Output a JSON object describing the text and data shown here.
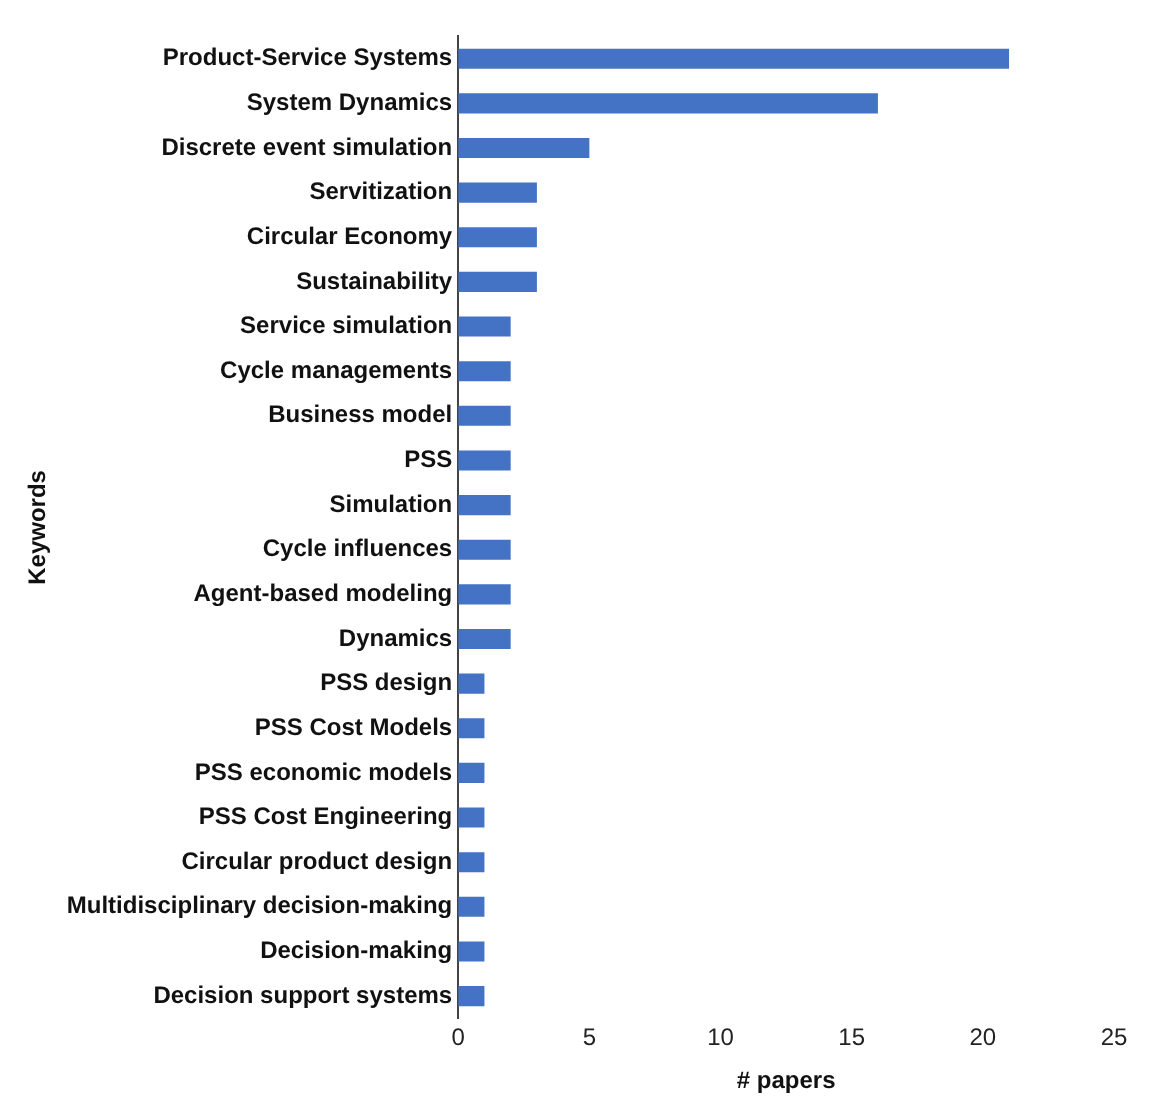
{
  "chart_data": {
    "type": "bar",
    "orientation": "horizontal",
    "xlabel": "# papers",
    "ylabel": "Keywords",
    "categories": [
      "Product-Service Systems",
      "System Dynamics",
      "Discrete event simulation",
      "Servitization",
      "Circular Economy",
      "Sustainability",
      "Service simulation",
      "Cycle managements",
      "Business model",
      "PSS",
      "Simulation",
      "Cycle influences",
      "Agent-based modeling",
      "Dynamics",
      "PSS design",
      "PSS Cost Models",
      "PSS economic models",
      "PSS Cost Engineering",
      "Circular product design",
      "Multidisciplinary decision-making",
      "Decision-making",
      "Decision support systems"
    ],
    "values": [
      21,
      16,
      5,
      3,
      3,
      3,
      2,
      2,
      2,
      2,
      2,
      2,
      2,
      2,
      1,
      1,
      1,
      1,
      1,
      1,
      1,
      1
    ],
    "color": "#4472c4",
    "xlim": [
      0,
      25
    ],
    "xticks": [
      0,
      5,
      10,
      15,
      20,
      25
    ],
    "grid": false,
    "legend": false
  }
}
